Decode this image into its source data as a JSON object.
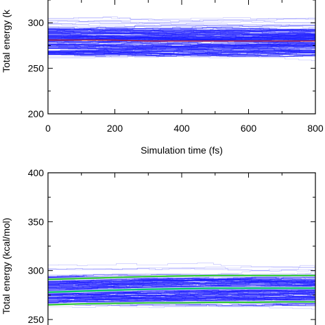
{
  "chart_data": [
    {
      "type": "line",
      "xlabel": "Simulation time (fs)",
      "ylabel": "Total energy (k",
      "xlim": [
        0,
        800
      ],
      "ylim": [
        200,
        325
      ],
      "xticks": [
        0,
        200,
        400,
        600,
        800
      ],
      "xtick_labels": [
        "0",
        "200",
        "400",
        "600",
        "800"
      ],
      "yticks": [
        200,
        250,
        300
      ],
      "ytick_labels": [
        "200",
        "250",
        "300"
      ],
      "grid": false,
      "band": {
        "color": "#1a1aff",
        "y_low": 258,
        "y_high": 305,
        "y_core_low": 265,
        "y_core_high": 295
      },
      "series": [
        {
          "color": "#cc2020",
          "x": [
            0,
            100,
            200,
            300,
            400,
            500,
            600,
            700,
            800
          ],
          "y": [
            281,
            281,
            281,
            280,
            280,
            280,
            280,
            280,
            280
          ]
        }
      ]
    },
    {
      "type": "line",
      "xlabel": "",
      "ylabel": "Total energy (kcal/mol)",
      "xlim": [
        0,
        800
      ],
      "ylim": [
        250,
        400
      ],
      "yticks": [
        250,
        300,
        350,
        400
      ],
      "ytick_labels": [
        "250",
        "300",
        "350",
        "400"
      ],
      "grid": false,
      "band": {
        "color": "#1a1aff",
        "y_low": 262,
        "y_high": 306,
        "y_core_low": 266,
        "y_core_high": 294
      },
      "series": [
        {
          "color": "#00cc66",
          "x": [
            0,
            100,
            200,
            300,
            400,
            500,
            600,
            700,
            800
          ],
          "y": [
            278,
            279,
            280,
            281,
            281.5,
            282,
            282,
            282,
            282
          ]
        },
        {
          "color": "#33cc33",
          "x": [
            0,
            100,
            200,
            300,
            400,
            500,
            600,
            700,
            800
          ],
          "y": [
            291,
            292,
            293,
            294,
            294.5,
            295,
            295,
            295,
            295
          ]
        },
        {
          "color": "#33cc33",
          "x": [
            0,
            100,
            200,
            300,
            400,
            500,
            600,
            700,
            800
          ],
          "y": [
            265,
            266,
            266.5,
            267,
            267,
            267.5,
            267.5,
            268,
            268
          ]
        }
      ]
    }
  ]
}
